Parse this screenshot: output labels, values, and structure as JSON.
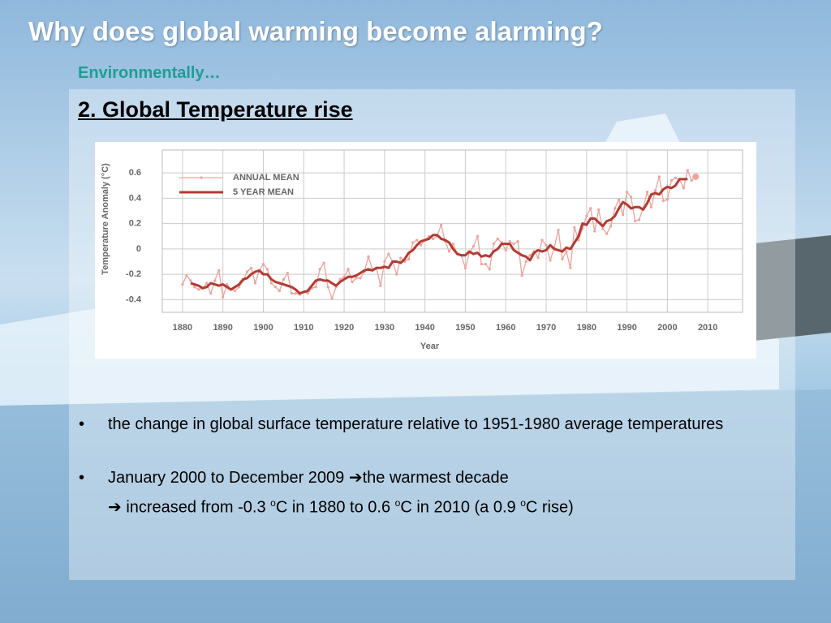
{
  "title": "Why does global warming become alarming?",
  "subtitle": "Environmentally…",
  "heading": "2. Global Temperature rise",
  "bullets": [
    {
      "text": "the change in global surface temperature relative to 1951-1980 average temperatures"
    },
    {
      "line1": [
        "January 2000 to December 2009 ",
        "➔",
        "the warmest decade"
      ],
      "line2": [
        "➔ increased from -0.3 ",
        "o",
        "C in 1880 to 0.6 ",
        "o",
        "C in 2010 (a 0.9 ",
        "o",
        "C rise)"
      ]
    }
  ],
  "chart_data": {
    "type": "line",
    "y_label": "Temperature Anomaly (°C)",
    "x_label": "Year",
    "x": [
      1880,
      1881,
      1882,
      1883,
      1884,
      1885,
      1886,
      1887,
      1888,
      1889,
      1890,
      1891,
      1892,
      1893,
      1894,
      1895,
      1896,
      1897,
      1898,
      1899,
      1900,
      1901,
      1902,
      1903,
      1904,
      1905,
      1906,
      1907,
      1908,
      1909,
      1910,
      1911,
      1912,
      1913,
      1914,
      1915,
      1916,
      1917,
      1918,
      1919,
      1920,
      1921,
      1922,
      1923,
      1924,
      1925,
      1926,
      1927,
      1928,
      1929,
      1930,
      1931,
      1932,
      1933,
      1934,
      1935,
      1936,
      1937,
      1938,
      1939,
      1940,
      1941,
      1942,
      1943,
      1944,
      1945,
      1946,
      1947,
      1948,
      1949,
      1950,
      1951,
      1952,
      1953,
      1954,
      1955,
      1956,
      1957,
      1958,
      1959,
      1960,
      1961,
      1962,
      1963,
      1964,
      1965,
      1966,
      1967,
      1968,
      1969,
      1970,
      1971,
      1972,
      1973,
      1974,
      1975,
      1976,
      1977,
      1978,
      1979,
      1980,
      1981,
      1982,
      1983,
      1984,
      1985,
      1986,
      1987,
      1988,
      1989,
      1990,
      1991,
      1992,
      1993,
      1994,
      1995,
      1996,
      1997,
      1998,
      1999,
      2000,
      2001,
      2002,
      2003,
      2004,
      2005,
      2006,
      2007
    ],
    "series": [
      {
        "name": "ANNUAL MEAN",
        "color": "#eea39c",
        "values": [
          -0.28,
          -0.21,
          -0.25,
          -0.3,
          -0.32,
          -0.31,
          -0.27,
          -0.35,
          -0.25,
          -0.17,
          -0.38,
          -0.28,
          -0.32,
          -0.33,
          -0.3,
          -0.25,
          -0.18,
          -0.15,
          -0.27,
          -0.17,
          -0.12,
          -0.16,
          -0.27,
          -0.3,
          -0.33,
          -0.24,
          -0.19,
          -0.35,
          -0.35,
          -0.36,
          -0.34,
          -0.35,
          -0.31,
          -0.3,
          -0.16,
          -0.11,
          -0.3,
          -0.39,
          -0.3,
          -0.24,
          -0.22,
          -0.16,
          -0.26,
          -0.23,
          -0.23,
          -0.18,
          -0.06,
          -0.16,
          -0.15,
          -0.29,
          -0.1,
          -0.04,
          -0.1,
          -0.2,
          -0.07,
          -0.1,
          -0.08,
          0.05,
          0.07,
          0.03,
          0.07,
          0.1,
          0.08,
          0.1,
          0.19,
          0.06,
          -0.02,
          0.04,
          -0.04,
          -0.05,
          -0.15,
          -0.03,
          0.02,
          0.1,
          -0.12,
          -0.12,
          -0.16,
          0.04,
          0.08,
          0.05,
          -0.01,
          0.06,
          0.04,
          0.06,
          -0.21,
          -0.1,
          -0.05,
          -0.02,
          -0.07,
          0.07,
          0.03,
          -0.09,
          0.01,
          0.15,
          -0.08,
          -0.02,
          -0.15,
          0.17,
          0.07,
          0.16,
          0.26,
          0.32,
          0.14,
          0.31,
          0.16,
          0.12,
          0.18,
          0.32,
          0.39,
          0.27,
          0.45,
          0.41,
          0.22,
          0.23,
          0.32,
          0.45,
          0.33,
          0.46,
          0.57,
          0.38,
          0.39,
          0.54,
          0.56,
          0.55,
          0.48,
          0.62,
          0.54,
          0.57
        ]
      },
      {
        "name": "5 YEAR MEAN",
        "color": "#b23b33",
        "values": [
          null,
          null,
          -0.27,
          -0.28,
          -0.29,
          -0.31,
          -0.3,
          -0.27,
          -0.28,
          -0.29,
          -0.28,
          -0.3,
          -0.32,
          -0.3,
          -0.28,
          -0.24,
          -0.23,
          -0.2,
          -0.18,
          -0.17,
          -0.2,
          -0.2,
          -0.24,
          -0.26,
          -0.27,
          -0.28,
          -0.29,
          -0.3,
          -0.32,
          -0.35,
          -0.34,
          -0.33,
          -0.29,
          -0.25,
          -0.24,
          -0.25,
          -0.25,
          -0.27,
          -0.29,
          -0.26,
          -0.24,
          -0.22,
          -0.22,
          -0.21,
          -0.19,
          -0.17,
          -0.16,
          -0.17,
          -0.15,
          -0.15,
          -0.14,
          -0.15,
          -0.1,
          -0.1,
          -0.11,
          -0.08,
          -0.03,
          -0.01,
          0.03,
          0.06,
          0.07,
          0.08,
          0.11,
          0.11,
          0.08,
          0.07,
          0.05,
          0,
          -0.04,
          -0.05,
          -0.05,
          -0.02,
          -0.04,
          -0.03,
          -0.06,
          -0.05,
          -0.06,
          -0.02,
          0,
          0.04,
          0.04,
          0.04,
          -0.01,
          -0.03,
          -0.05,
          -0.06,
          -0.09,
          -0.03,
          -0.01,
          -0.02,
          -0.01,
          0.03,
          0,
          -0.01,
          -0.02,
          0.01,
          0,
          0.05,
          0.1,
          0.2,
          0.19,
          0.24,
          0.24,
          0.21,
          0.18,
          0.22,
          0.23,
          0.26,
          0.32,
          0.37,
          0.35,
          0.32,
          0.33,
          0.33,
          0.31,
          0.36,
          0.43,
          0.44,
          0.43,
          0.47,
          0.49,
          0.48,
          0.5,
          0.55,
          0.55,
          0.55,
          null,
          null
        ]
      }
    ],
    "xlim": [
      1875,
      2018.6
    ],
    "xticks": [
      1880,
      1890,
      1900,
      1910,
      1920,
      1930,
      1940,
      1950,
      1960,
      1970,
      1980,
      1990,
      2000,
      2010
    ],
    "ylim": [
      -0.5,
      0.78
    ],
    "yticks": [
      0.6,
      0.4,
      0.2,
      0,
      -0.2,
      -0.4
    ],
    "grid": true,
    "legend": "upper left"
  }
}
